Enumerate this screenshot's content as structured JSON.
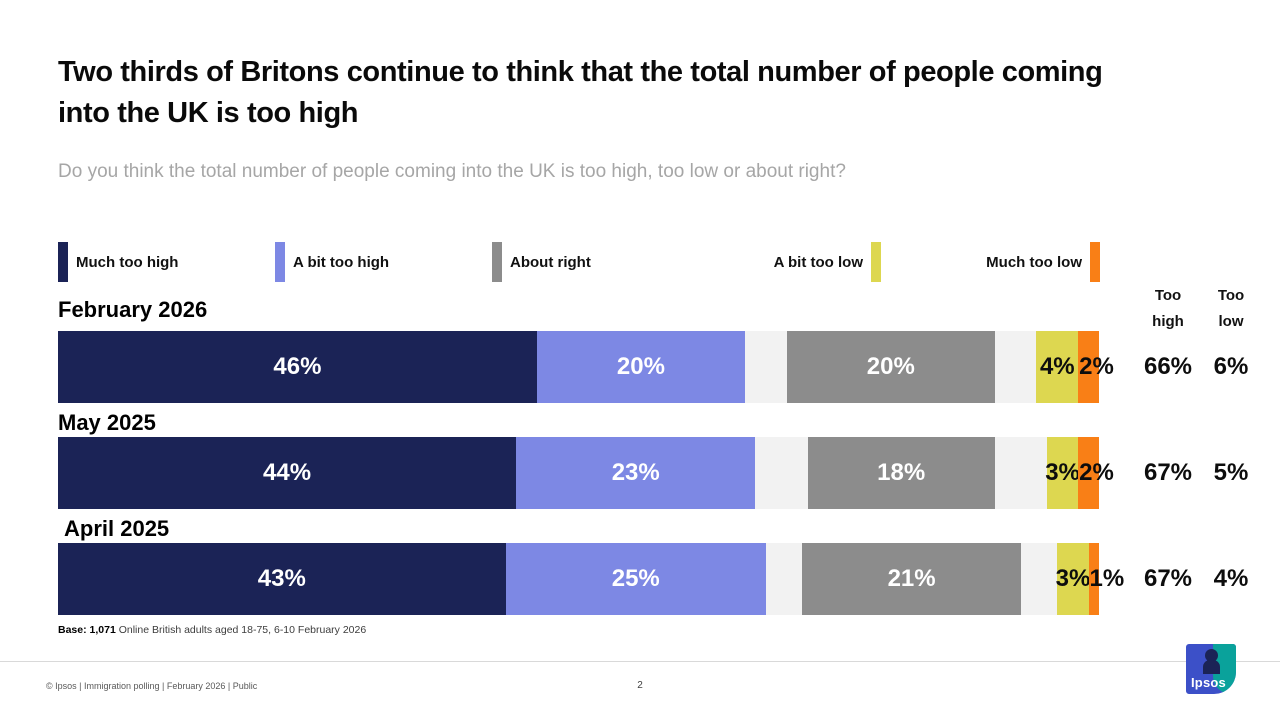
{
  "title": "Two thirds of Britons continue to think that the total number of people coming into the UK is too high",
  "subtitle": "Do you think the total number of people coming into the UK is too high, too low or about right?",
  "colors": {
    "much_too_high": "#1b2356",
    "a_bit_too_high": "#7d88e4",
    "about_right": "#8c8c8c",
    "a_bit_too_low": "#ddd750",
    "much_too_low": "#f97f16",
    "unlabeled_remainder": "#f2f2f2",
    "logo_blue": "#3c50c8",
    "logo_teal": "#0aa29b",
    "logo_silhouette": "#1b2356"
  },
  "legend": {
    "items": [
      {
        "label": "Much too high",
        "color_key": "much_too_high",
        "swatch_side": "left"
      },
      {
        "label": "A bit too high",
        "color_key": "a_bit_too_high",
        "swatch_side": "left"
      },
      {
        "label": "About right",
        "color_key": "about_right",
        "swatch_side": "left"
      },
      {
        "label": "A bit too low",
        "color_key": "a_bit_too_low",
        "swatch_side": "right"
      },
      {
        "label": "Much too low",
        "color_key": "much_too_low",
        "swatch_side": "right"
      }
    ]
  },
  "chart_data": {
    "type": "bar",
    "subtype": "horizontal-stacked",
    "categories": [
      "February 2026",
      "May 2025",
      "April 2025"
    ],
    "series": [
      {
        "name": "Much too high",
        "color_key": "much_too_high",
        "values": [
          46,
          44,
          43
        ]
      },
      {
        "name": "A bit too high",
        "color_key": "a_bit_too_high",
        "values": [
          20,
          23,
          25
        ]
      },
      {
        "name": "About right",
        "color_key": "about_right",
        "values": [
          20,
          18,
          21
        ]
      },
      {
        "name": "A bit too low",
        "color_key": "a_bit_too_low",
        "values": [
          4,
          3,
          3
        ]
      },
      {
        "name": "Much too low",
        "color_key": "much_too_low",
        "values": [
          2,
          2,
          1
        ]
      }
    ],
    "value_suffix": "%",
    "axis_range": [
      0,
      100
    ],
    "legend_position": "top",
    "summary_columns": [
      {
        "header": "Too high",
        "values": [
          "66%",
          "67%",
          "67%"
        ]
      },
      {
        "header": "Too low",
        "values": [
          "6%",
          "5%",
          "4%"
        ]
      }
    ]
  },
  "base_note": {
    "bold": "Base: 1,071",
    "rest": " Online British adults aged 18-75, 6-10 February 2026"
  },
  "footer": {
    "copyright": "© Ipsos | Immigration polling | February 2026 | Public",
    "page_number": "2",
    "logo_text": "Ipsos"
  }
}
